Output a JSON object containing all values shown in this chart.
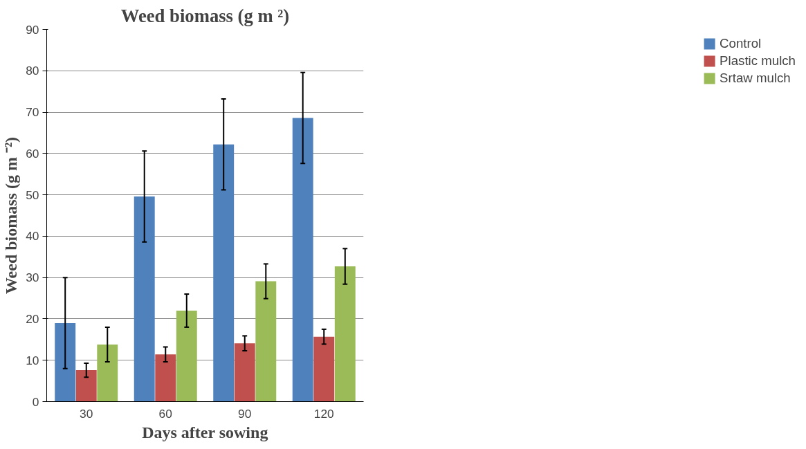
{
  "chart_data": {
    "type": "bar",
    "title": "Weed biomass (g m ²)",
    "xlabel": "Days after sowing",
    "ylabel": "Weed biomass (g m ⁻²)",
    "categories": [
      "30",
      "60",
      "90",
      "120"
    ],
    "series": [
      {
        "name": "Control",
        "color": "#4f81bd",
        "values": [
          19,
          49.6,
          62.2,
          68.6
        ],
        "errors": [
          11,
          11,
          11,
          11
        ]
      },
      {
        "name": "Plastic mulch",
        "color": "#c0504d",
        "values": [
          7.6,
          11.4,
          14.1,
          15.7
        ],
        "errors": [
          1.7,
          1.8,
          1.8,
          1.8
        ]
      },
      {
        "name": "Srtaw mulch",
        "color": "#9bbb59",
        "values": [
          13.8,
          22,
          29.1,
          32.7
        ],
        "errors": [
          4.2,
          4,
          4.2,
          4.3
        ]
      }
    ],
    "ylim": [
      0,
      90
    ],
    "yticks": [
      0,
      10,
      20,
      30,
      40,
      50,
      60,
      70,
      80,
      90
    ],
    "grid": "y",
    "legend": "right"
  }
}
